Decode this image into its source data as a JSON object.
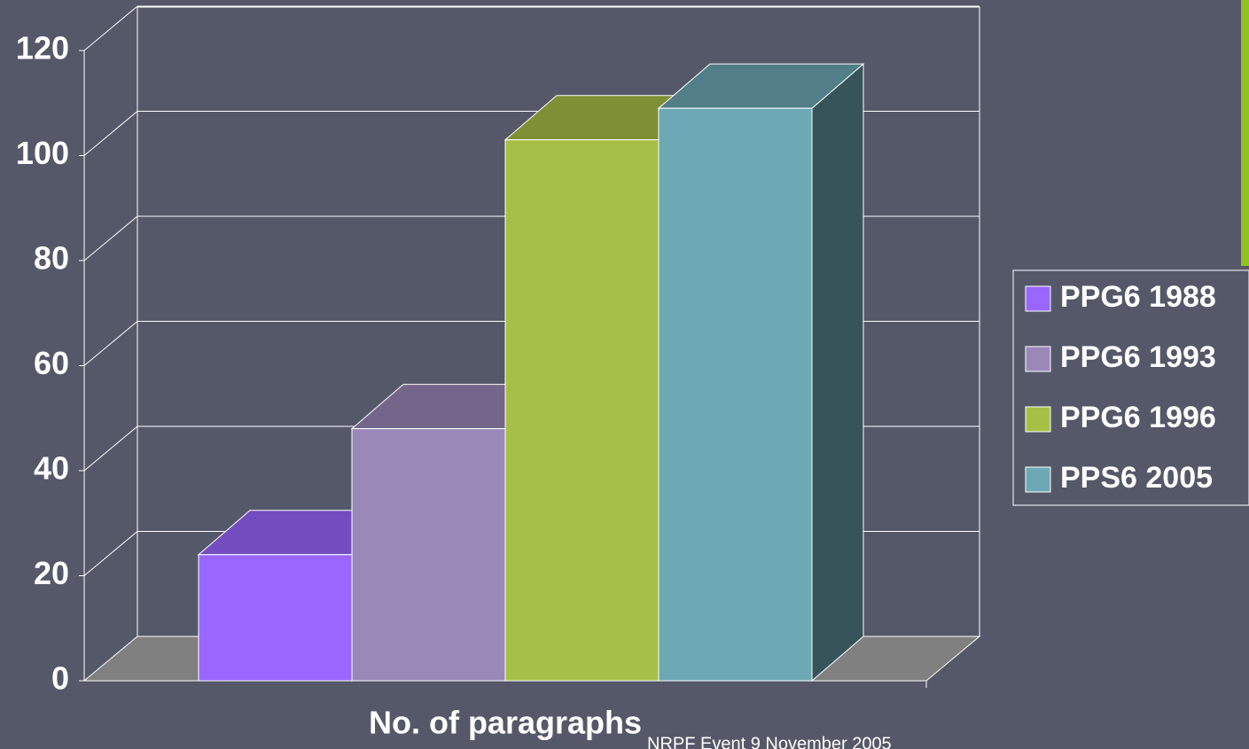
{
  "chart_data": {
    "type": "bar3d",
    "categories": [
      "No. of paragraphs"
    ],
    "series": [
      {
        "name": "PPG6 1988",
        "color": "#9966ff",
        "values": [
          24
        ]
      },
      {
        "name": "PPG6 1993",
        "color": "#9988b8",
        "values": [
          48
        ]
      },
      {
        "name": "PPG6 1996",
        "color": "#a6c047",
        "values": [
          103
        ]
      },
      {
        "name": "PPS6 2005",
        "color": "#6da8b5",
        "values": [
          109
        ]
      }
    ],
    "ylim": [
      0,
      120
    ],
    "yticks": [
      0,
      20,
      40,
      60,
      80,
      100,
      120
    ],
    "grid": true,
    "legend": "right",
    "footer": "NRPF Event 9 November 2005"
  }
}
